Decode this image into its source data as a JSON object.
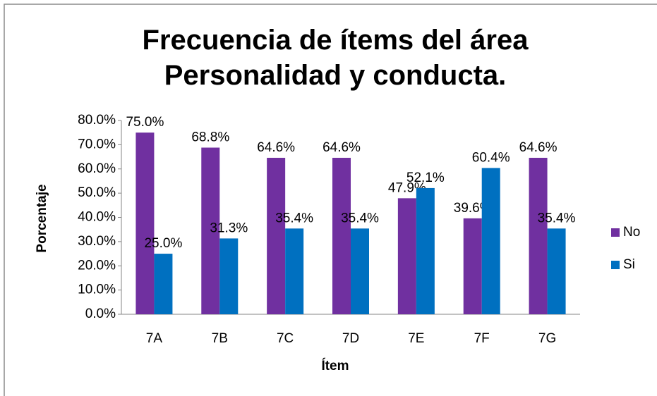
{
  "chart_data": {
    "type": "bar",
    "title": "Frecuencia de ítems del área Personalidad y conducta.",
    "x_label": "Ítem",
    "y_label": "Porcentaje",
    "categories": [
      "7A",
      "7B",
      "7C",
      "7D",
      "7E",
      "7F",
      "7G"
    ],
    "series": [
      {
        "name": "No",
        "color": "#7030a0",
        "values": [
          75.0,
          68.8,
          64.6,
          64.6,
          47.9,
          39.6,
          64.6
        ],
        "value_labels": [
          "75.0%",
          "68.8%",
          "64.6%",
          "64.6%",
          "47.9%",
          "39.6%",
          "64.6%"
        ]
      },
      {
        "name": "Si",
        "color": "#0070c0",
        "values": [
          25.0,
          31.3,
          35.4,
          35.4,
          52.1,
          60.4,
          35.4
        ],
        "value_labels": [
          "25.0%",
          "31.3%",
          "35.4%",
          "35.4%",
          "52.1%",
          "60.4%",
          "35.4%"
        ]
      }
    ],
    "ylim": [
      0,
      80
    ],
    "yticks": [
      {
        "value": 0,
        "label": "0.0%"
      },
      {
        "value": 10,
        "label": "10.0%"
      },
      {
        "value": 20,
        "label": "20.0%"
      },
      {
        "value": 30,
        "label": "30.0%"
      },
      {
        "value": 40,
        "label": "40.0%"
      },
      {
        "value": 50,
        "label": "50.0%"
      },
      {
        "value": 60,
        "label": "60.0%"
      },
      {
        "value": 70,
        "label": "70.0%"
      },
      {
        "value": 80,
        "label": "80.0%"
      }
    ],
    "legend": "right"
  }
}
